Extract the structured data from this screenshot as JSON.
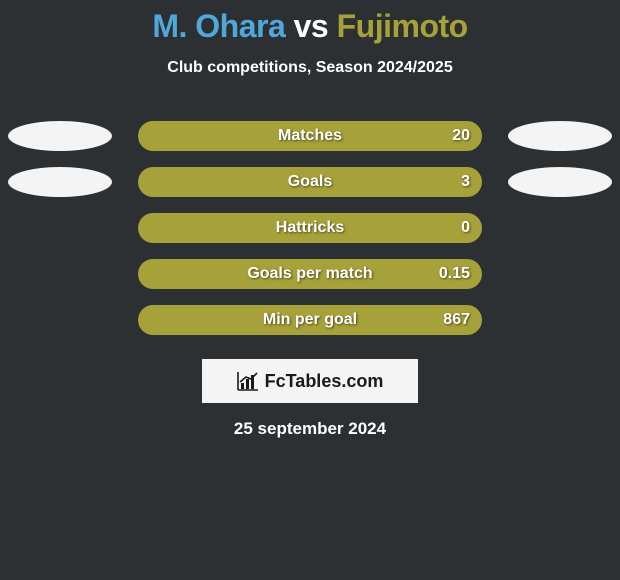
{
  "background_color": "#2c3033",
  "title": {
    "prefix": "M. Ohara",
    "prefix_color": "#4fa8d8",
    "connector": " vs ",
    "connector_color": "#ffffff",
    "suffix": "Fujimoto",
    "suffix_color": "#a7a13a"
  },
  "subtitle": {
    "text": "Club competitions, Season 2024/2025",
    "color": "#ffffff"
  },
  "stats": {
    "bar_color": "#a7a13a",
    "label_color": "#ffffff",
    "value_color": "#ffffff",
    "rows": [
      {
        "label": "Matches",
        "value": "20",
        "left_ellipse": true,
        "right_ellipse": true,
        "ellipse_color": "#f4f4f4"
      },
      {
        "label": "Goals",
        "value": "3",
        "left_ellipse": true,
        "right_ellipse": true,
        "ellipse_color": "#f4f4f4"
      },
      {
        "label": "Hattricks",
        "value": "0",
        "left_ellipse": false,
        "right_ellipse": false
      },
      {
        "label": "Goals per match",
        "value": "0.15",
        "left_ellipse": false,
        "right_ellipse": false
      },
      {
        "label": "Min per goal",
        "value": "867",
        "left_ellipse": false,
        "right_ellipse": false
      }
    ]
  },
  "logo": {
    "background_color": "#f4f4f4",
    "text": "FcTables.com",
    "text_color": "#1a1a1a",
    "icon_color": "#1a1a1a"
  },
  "footer": {
    "date": "25 september 2024",
    "color": "#ffffff"
  }
}
